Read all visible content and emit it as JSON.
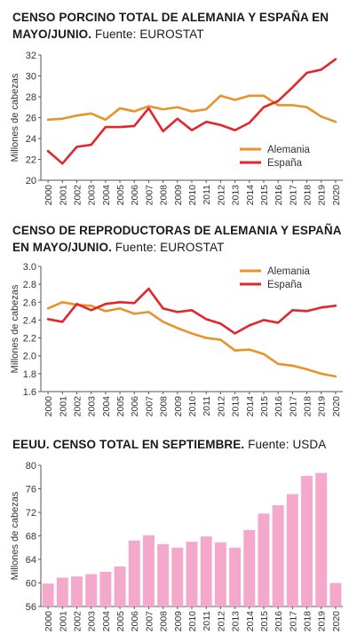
{
  "panels": [
    {
      "title_bold": "CENSO PORCINO TOTAL DE ALEMANIA Y ESPAÑA EN MAYO/JUNIO.",
      "source": "Fuente: EUROSTAT"
    },
    {
      "title_bold": "CENSO DE REPRODUCTORAS DE ALEMANIA Y ESPAÑA EN MAYO/JUNIO.",
      "source": "Fuente: EUROSTAT"
    },
    {
      "title_bold": "EEUU. CENSO TOTAL EN SEPTIEMBRE.",
      "source": "Fuente: USDA"
    }
  ],
  "colors": {
    "alemania": "#e8922a",
    "espana": "#e3262c",
    "bars": "#f4a8cc",
    "axis": "#555555"
  },
  "chart_data": [
    {
      "type": "line",
      "title": "CENSO PORCINO TOTAL DE ALEMANIA Y ESPAÑA EN MAYO/JUNIO.",
      "ylabel": "Millones de cabezas",
      "xlabel": "",
      "ylim": [
        20,
        32
      ],
      "yticks": [
        20,
        22,
        24,
        26,
        28,
        30,
        32
      ],
      "x": [
        "2000",
        "2001",
        "2002",
        "2003",
        "2004",
        "2005",
        "2006",
        "2007",
        "2008",
        "2009",
        "2010",
        "2011",
        "2012",
        "2013",
        "2014",
        "2015",
        "2016",
        "2017",
        "2018",
        "2019",
        "2020"
      ],
      "legend_position": "bottom-right",
      "grid": false,
      "series": [
        {
          "name": "Alemania",
          "values": [
            25.8,
            25.9,
            26.2,
            26.4,
            25.8,
            26.9,
            26.6,
            27.1,
            26.8,
            27.0,
            26.6,
            26.8,
            28.1,
            27.7,
            28.1,
            28.1,
            27.2,
            27.2,
            27.0,
            26.1,
            25.6
          ]
        },
        {
          "name": "España",
          "values": [
            22.8,
            21.6,
            23.2,
            23.4,
            25.1,
            25.1,
            25.2,
            26.9,
            24.7,
            25.9,
            24.8,
            25.6,
            25.3,
            24.8,
            25.5,
            27.0,
            27.6,
            28.9,
            30.3,
            30.6,
            31.6
          ]
        }
      ]
    },
    {
      "type": "line",
      "title": "CENSO DE REPRODUCTORAS DE ALEMANIA Y ESPAÑA EN MAYO/JUNIO.",
      "ylabel": "Millones de cabezas",
      "xlabel": "",
      "ylim": [
        1.6,
        3.0
      ],
      "yticks": [
        1.6,
        1.8,
        2.0,
        2.2,
        2.4,
        2.6,
        2.8,
        3.0
      ],
      "x": [
        "2000",
        "2001",
        "2002",
        "2003",
        "2004",
        "2005",
        "2006",
        "2007",
        "2008",
        "2009",
        "2010",
        "2011",
        "2012",
        "2013",
        "2014",
        "2015",
        "2016",
        "2017",
        "2018",
        "2019",
        "2020"
      ],
      "legend_position": "top-right",
      "grid": false,
      "series": [
        {
          "name": "Alemania",
          "values": [
            2.53,
            2.6,
            2.57,
            2.56,
            2.5,
            2.53,
            2.47,
            2.49,
            2.38,
            2.31,
            2.25,
            2.2,
            2.18,
            2.06,
            2.07,
            2.02,
            1.91,
            1.89,
            1.85,
            1.8,
            1.77
          ]
        },
        {
          "name": "España",
          "values": [
            2.41,
            2.38,
            2.58,
            2.51,
            2.58,
            2.6,
            2.59,
            2.75,
            2.53,
            2.49,
            2.51,
            2.41,
            2.36,
            2.25,
            2.34,
            2.4,
            2.37,
            2.51,
            2.5,
            2.54,
            2.56
          ]
        }
      ]
    },
    {
      "type": "bar",
      "title": "EEUU. CENSO TOTAL EN SEPTIEMBRE.",
      "ylabel": "Millones de cabezas",
      "xlabel": "",
      "ylim": [
        56,
        80
      ],
      "yticks": [
        56,
        60,
        64,
        68,
        72,
        76,
        80
      ],
      "categories": [
        "2000",
        "2001",
        "2002",
        "2003",
        "2004",
        "2005",
        "2006",
        "2007",
        "2008",
        "2009",
        "2010",
        "2011",
        "2012",
        "2013",
        "2014",
        "2015",
        "2016",
        "2017",
        "2018",
        "2019",
        "2020"
      ],
      "grid": false,
      "values": [
        59.9,
        60.9,
        61.1,
        61.5,
        61.9,
        62.8,
        67.2,
        68.1,
        66.6,
        66.0,
        67.0,
        67.9,
        66.9,
        66.0,
        69.0,
        71.8,
        73.2,
        75.1,
        78.2,
        78.7,
        60.0
      ]
    }
  ]
}
